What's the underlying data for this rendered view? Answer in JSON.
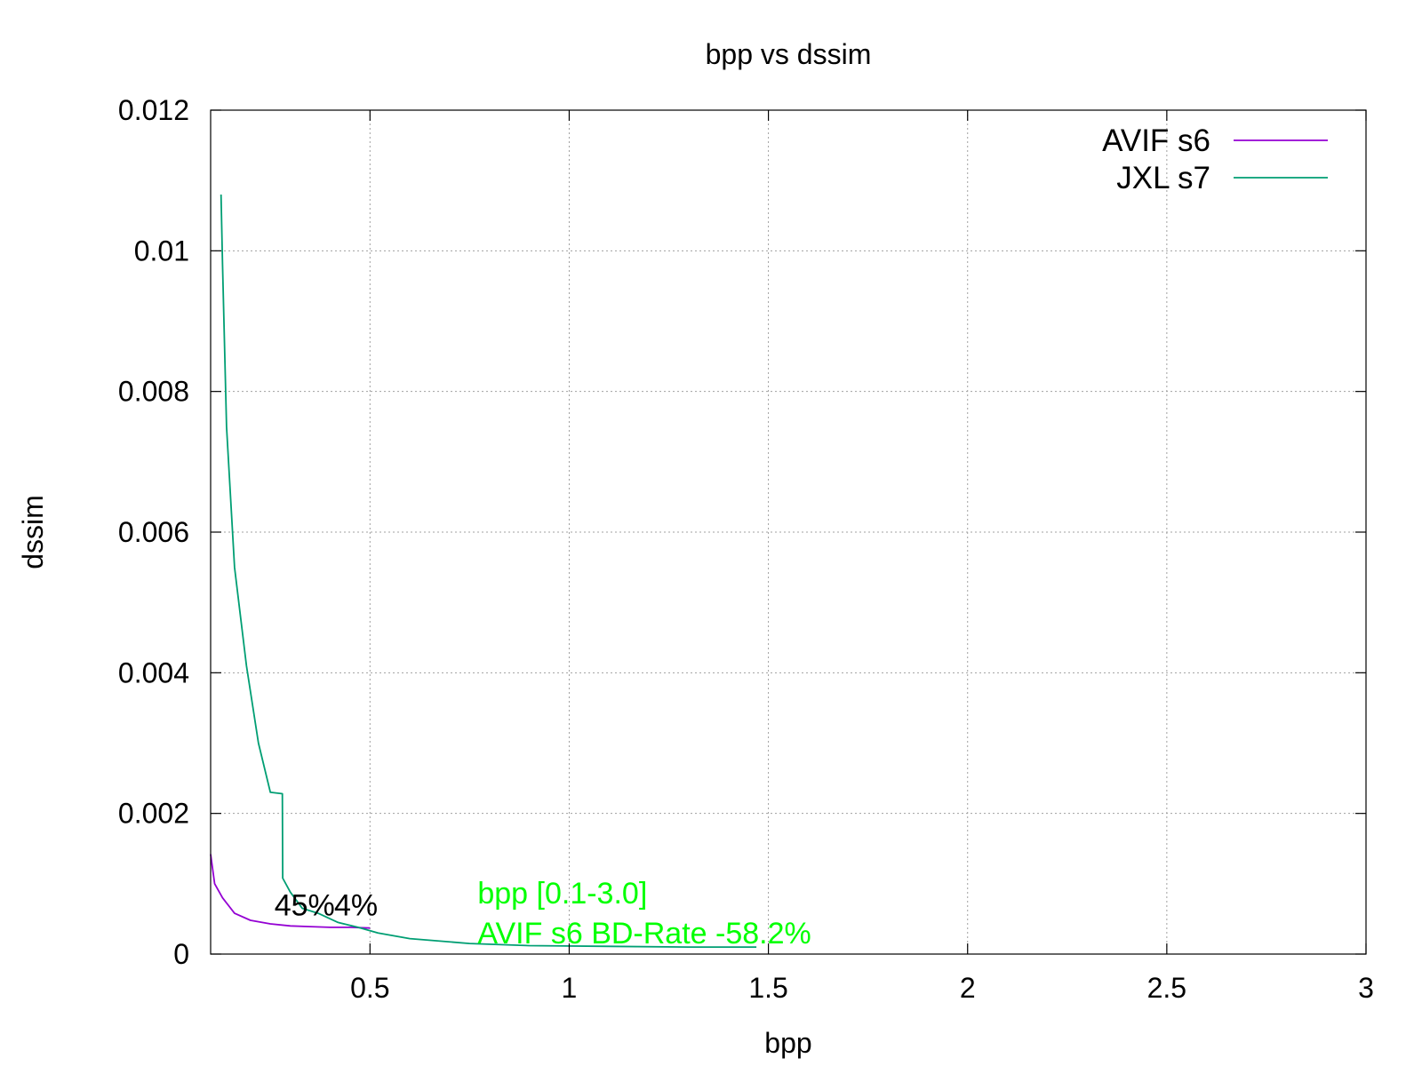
{
  "chart_data": {
    "type": "line",
    "title": "bpp vs dssim",
    "xlabel": "bpp",
    "ylabel": "dssim",
    "xlim": [
      0.1,
      3
    ],
    "ylim": [
      0,
      0.012
    ],
    "xticks": [
      0.5,
      1,
      1.5,
      2,
      2.5,
      3
    ],
    "xtick_labels": [
      "0.5",
      "1",
      "1.5",
      "2",
      "2.5",
      "3"
    ],
    "yticks": [
      0,
      0.002,
      0.004,
      0.006,
      0.008,
      0.01,
      0.012
    ],
    "ytick_labels": [
      "0",
      "0.002",
      "0.004",
      "0.006",
      "0.008",
      "0.01",
      "0.012"
    ],
    "grid": true,
    "legend_position": "top-right",
    "series": [
      {
        "name": "AVIF s6",
        "color": "#9400d3",
        "x": [
          0.1,
          0.11,
          0.13,
          0.16,
          0.2,
          0.25,
          0.3,
          0.35,
          0.4,
          0.45,
          0.5
        ],
        "y": [
          0.00142,
          0.001,
          0.0008,
          0.00058,
          0.00048,
          0.00043,
          0.0004,
          0.00039,
          0.00038,
          0.00038,
          0.00037
        ]
      },
      {
        "name": "JXL s7",
        "color": "#009e73",
        "x": [
          0.126,
          0.13,
          0.14,
          0.16,
          0.19,
          0.22,
          0.25,
          0.28,
          0.281,
          0.3,
          0.33,
          0.37,
          0.42,
          0.47,
          0.52,
          0.6,
          0.75,
          0.9,
          1.1,
          1.3,
          1.47
        ],
        "y": [
          0.0108,
          0.0098,
          0.0075,
          0.0055,
          0.0041,
          0.003,
          0.0023,
          0.00228,
          0.00108,
          0.00088,
          0.00065,
          0.00058,
          0.00045,
          0.00038,
          0.0003,
          0.00022,
          0.00015,
          0.00012,
          0.00011,
          0.0001,
          0.0001
        ]
      }
    ],
    "annotations": [
      {
        "text": "45%",
        "x": 0.26,
        "y": 0.00055,
        "color": "#000000"
      },
      {
        "text": "4%",
        "x": 0.41,
        "y": 0.00055,
        "color": "#000000"
      },
      {
        "text": "bpp [0.1-3.0]",
        "x": 0.77,
        "y": 0.00072,
        "color": "#00ff00"
      },
      {
        "text": "AVIF s6 BD-Rate -58.2%",
        "x": 0.77,
        "y": 0.00015,
        "color": "#00ff00"
      }
    ]
  }
}
